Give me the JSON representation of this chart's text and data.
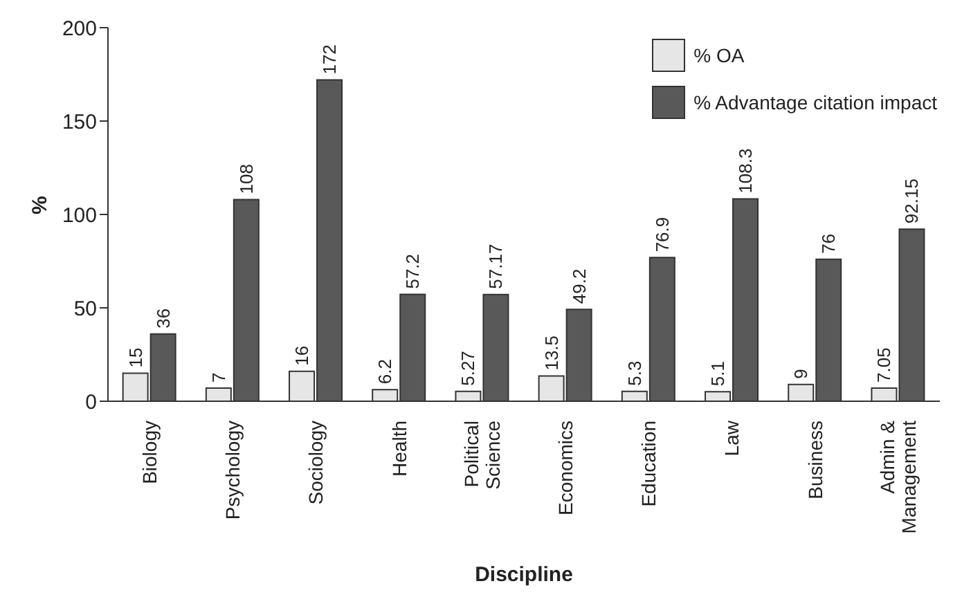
{
  "chart_data": {
    "type": "bar",
    "xlabel": "Discipline",
    "ylabel": "%",
    "categories": [
      "Biology",
      "Psychology",
      "Sociology",
      "Health",
      "Political Science",
      "Economics",
      "Education",
      "Law",
      "Business",
      "Admin & Management"
    ],
    "series": [
      {
        "name": "% OA",
        "color": "#e6e6e6",
        "values": [
          15,
          7,
          16,
          6.2,
          5.27,
          13.5,
          5.3,
          5.1,
          9,
          7.05
        ]
      },
      {
        "name": "% Advantage citation impact",
        "color": "#595959",
        "values": [
          36,
          108,
          172,
          57.2,
          57.17,
          49.2,
          76.9,
          108.3,
          76,
          92.15
        ]
      }
    ],
    "ylim": [
      0,
      200
    ],
    "yticks": [
      0,
      50,
      100,
      150,
      200
    ],
    "grid": false,
    "legend": "top right",
    "data_labels": true
  }
}
